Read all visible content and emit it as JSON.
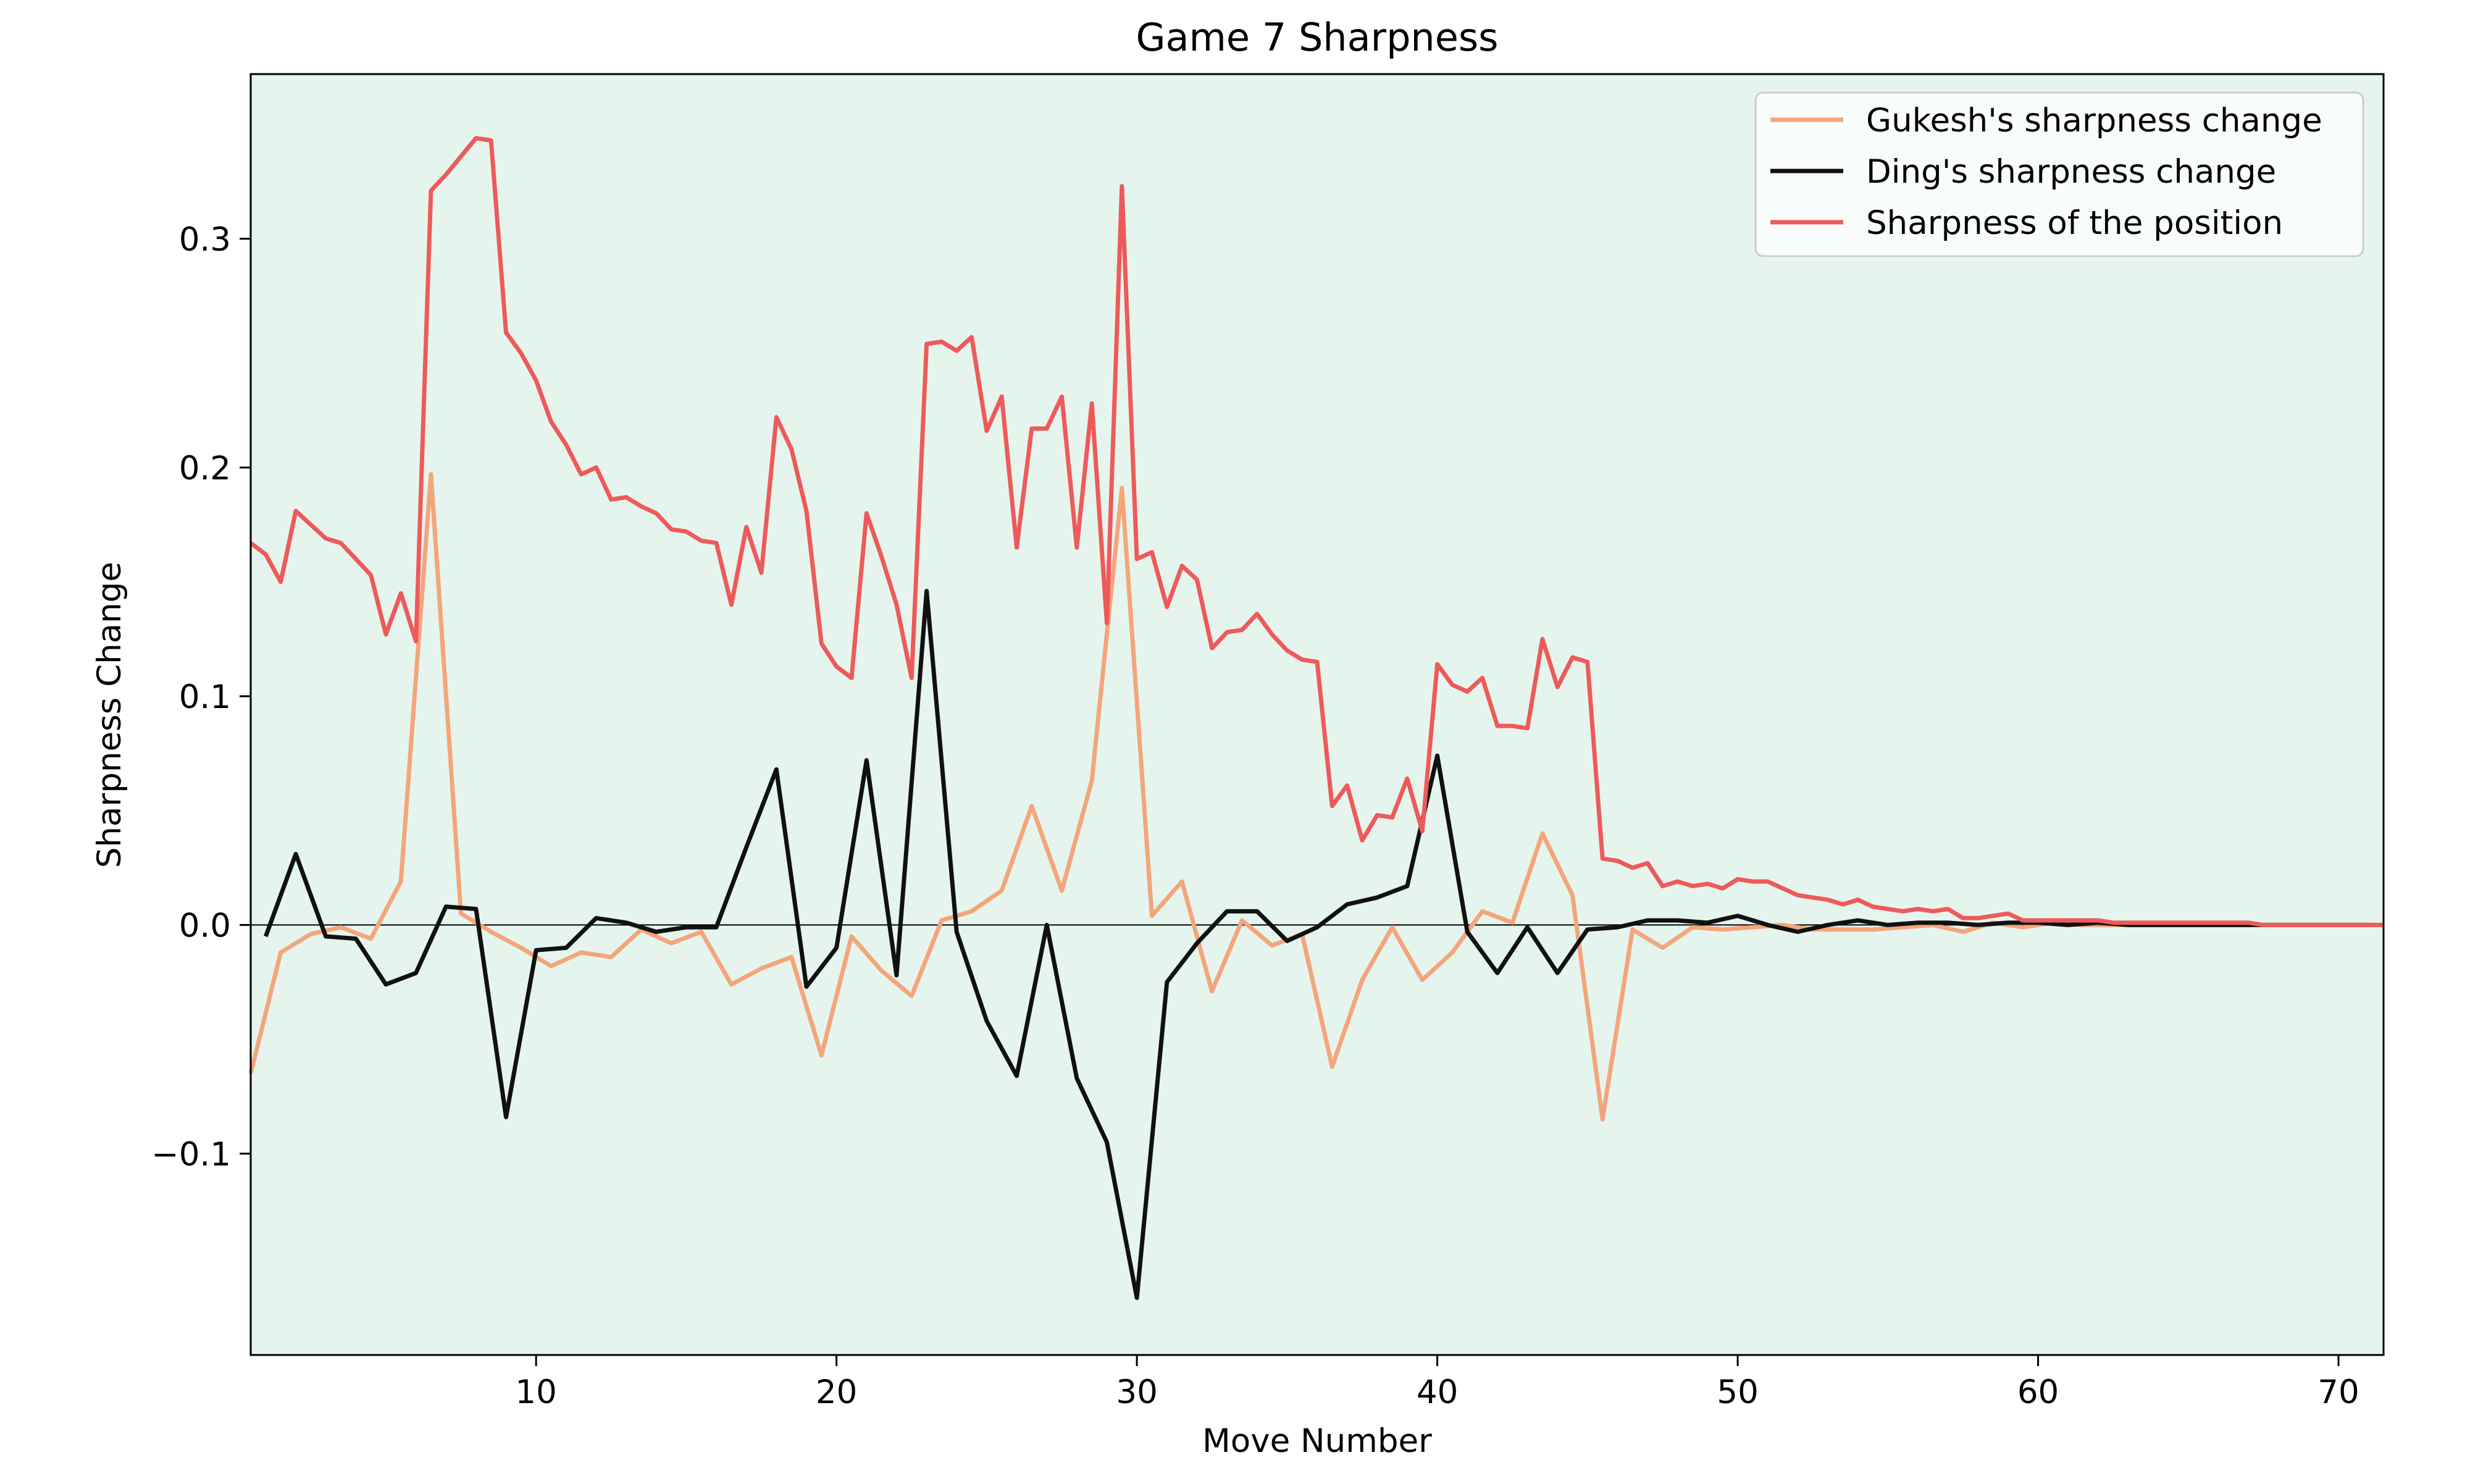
{
  "chart_data": {
    "type": "line",
    "title": "Game 7 Sharpness",
    "xlabel": "Move Number",
    "ylabel": "Sharpness Change",
    "xlim": [
      0.5,
      71.5
    ],
    "ylim": [
      -0.188,
      0.372
    ],
    "x_ticks": [
      10,
      20,
      30,
      40,
      50,
      60,
      70
    ],
    "y_ticks": [
      -0.1,
      0.0,
      0.1,
      0.2,
      0.3
    ],
    "x_tick_labels": [
      "10",
      "20",
      "30",
      "40",
      "50",
      "60",
      "70"
    ],
    "y_tick_labels": [
      "−0.1",
      "0.0",
      "0.1",
      "0.2",
      "0.3"
    ],
    "grid": false,
    "zero_line": true,
    "legend_position": "top-right",
    "plot_background": "#e5f5ee",
    "series": [
      {
        "name": "Gukesh's sharpness change",
        "color": "#f4a57b",
        "points": [
          [
            0.5,
            -0.065
          ],
          [
            1.5,
            -0.012
          ],
          [
            2.5,
            -0.004
          ],
          [
            3.5,
            -0.001
          ],
          [
            4.5,
            -0.006
          ],
          [
            5.5,
            0.019
          ],
          [
            6.5,
            0.197
          ],
          [
            7.5,
            0.005
          ],
          [
            8.5,
            -0.003
          ],
          [
            9.5,
            -0.01
          ],
          [
            10.5,
            -0.018
          ],
          [
            11.5,
            -0.012
          ],
          [
            12.5,
            -0.014
          ],
          [
            13.5,
            -0.002
          ],
          [
            14.5,
            -0.008
          ],
          [
            15.5,
            -0.003
          ],
          [
            16.5,
            -0.026
          ],
          [
            17.5,
            -0.019
          ],
          [
            18.5,
            -0.014
          ],
          [
            19.5,
            -0.057
          ],
          [
            20.5,
            -0.005
          ],
          [
            21.5,
            -0.02
          ],
          [
            22.5,
            -0.031
          ],
          [
            23.5,
            0.002
          ],
          [
            24.5,
            0.006
          ],
          [
            25.5,
            0.015
          ],
          [
            26.5,
            0.052
          ],
          [
            27.5,
            0.015
          ],
          [
            28.5,
            0.063
          ],
          [
            29.5,
            0.191
          ],
          [
            30.5,
            0.004
          ],
          [
            31.5,
            0.019
          ],
          [
            32.5,
            -0.029
          ],
          [
            33.5,
            0.002
          ],
          [
            34.5,
            -0.009
          ],
          [
            35.5,
            -0.004
          ],
          [
            36.5,
            -0.062
          ],
          [
            37.5,
            -0.024
          ],
          [
            38.5,
            -0.001
          ],
          [
            39.5,
            -0.024
          ],
          [
            40.5,
            -0.012
          ],
          [
            41.5,
            0.006
          ],
          [
            42.5,
            0.001
          ],
          [
            43.5,
            0.04
          ],
          [
            44.5,
            0.013
          ],
          [
            45.5,
            -0.085
          ],
          [
            46.5,
            -0.002
          ],
          [
            47.5,
            -0.01
          ],
          [
            48.5,
            -0.001
          ],
          [
            49.5,
            -0.002
          ],
          [
            50.5,
            -0.001
          ],
          [
            51.5,
            0.0
          ],
          [
            52.5,
            -0.002
          ],
          [
            53.5,
            -0.002
          ],
          [
            54.5,
            -0.002
          ],
          [
            55.5,
            -0.001
          ],
          [
            56.5,
            0.0
          ],
          [
            57.5,
            -0.003
          ],
          [
            58.5,
            0.001
          ],
          [
            59.5,
            -0.001
          ],
          [
            60.5,
            0.001
          ],
          [
            61.5,
            0.0
          ],
          [
            62.5,
            0.0
          ],
          [
            63.5,
            0.0
          ],
          [
            64.5,
            0.0
          ],
          [
            65.5,
            0.0
          ],
          [
            66.5,
            0.0
          ],
          [
            67.5,
            0.0
          ],
          [
            68.5,
            0.0
          ],
          [
            69.5,
            0.0
          ],
          [
            70.5,
            0.0
          ],
          [
            71.5,
            0.0
          ]
        ]
      },
      {
        "name": "Ding's sharpness change",
        "color": "#111111",
        "points": [
          [
            1,
            -0.005
          ],
          [
            2,
            0.031
          ],
          [
            3,
            -0.005
          ],
          [
            4,
            -0.006
          ],
          [
            5,
            -0.026
          ],
          [
            6,
            -0.021
          ],
          [
            7,
            0.008
          ],
          [
            8,
            0.007
          ],
          [
            9,
            -0.084
          ],
          [
            10,
            -0.011
          ],
          [
            11,
            -0.01
          ],
          [
            12,
            0.003
          ],
          [
            13,
            0.001
          ],
          [
            14,
            -0.003
          ],
          [
            15,
            -0.001
          ],
          [
            16,
            -0.001
          ],
          [
            17,
            0.034
          ],
          [
            18,
            0.068
          ],
          [
            19,
            -0.027
          ],
          [
            20,
            -0.01
          ],
          [
            21,
            0.072
          ],
          [
            22,
            -0.022
          ],
          [
            23,
            0.146
          ],
          [
            24,
            -0.003
          ],
          [
            25,
            -0.042
          ],
          [
            26,
            -0.066
          ],
          [
            27,
            0.0
          ],
          [
            28,
            -0.067
          ],
          [
            29,
            -0.095
          ],
          [
            30,
            -0.163
          ],
          [
            31,
            -0.025
          ],
          [
            32,
            -0.008
          ],
          [
            33,
            0.006
          ],
          [
            34,
            0.006
          ],
          [
            35,
            -0.007
          ],
          [
            36,
            -0.001
          ],
          [
            37,
            0.009
          ],
          [
            38,
            0.012
          ],
          [
            39,
            0.017
          ],
          [
            40,
            0.074
          ],
          [
            41,
            -0.003
          ],
          [
            42,
            -0.021
          ],
          [
            43,
            -0.001
          ],
          [
            44,
            -0.021
          ],
          [
            45,
            -0.002
          ],
          [
            46,
            -0.001
          ],
          [
            47,
            0.002
          ],
          [
            48,
            0.002
          ],
          [
            49,
            0.001
          ],
          [
            50,
            0.004
          ],
          [
            51,
            0.0
          ],
          [
            52,
            -0.003
          ],
          [
            53,
            0.0
          ],
          [
            54,
            0.002
          ],
          [
            55,
            0.0
          ],
          [
            56,
            0.001
          ],
          [
            57,
            0.001
          ],
          [
            58,
            0.0
          ],
          [
            59,
            0.001
          ],
          [
            60,
            0.001
          ],
          [
            61,
            0.0
          ],
          [
            62,
            0.001
          ],
          [
            63,
            0.0
          ],
          [
            64,
            0.0
          ],
          [
            65,
            0.0
          ],
          [
            66,
            0.0
          ],
          [
            67,
            0.0
          ],
          [
            68,
            0.0
          ],
          [
            69,
            0.0
          ],
          [
            70,
            0.0
          ],
          [
            71,
            0.0
          ]
        ]
      },
      {
        "name": "Sharpness of the position",
        "color": "#ee5a5a",
        "points": [
          [
            0.5,
            0.167
          ],
          [
            1.0,
            0.162
          ],
          [
            1.5,
            0.15
          ],
          [
            2.0,
            0.181
          ],
          [
            2.5,
            0.175
          ],
          [
            3.0,
            0.169
          ],
          [
            3.5,
            0.167
          ],
          [
            4.0,
            0.16
          ],
          [
            4.5,
            0.153
          ],
          [
            5.0,
            0.127
          ],
          [
            5.5,
            0.145
          ],
          [
            6.0,
            0.124
          ],
          [
            6.5,
            0.321
          ],
          [
            7.0,
            0.328
          ],
          [
            7.5,
            0.336
          ],
          [
            8.0,
            0.344
          ],
          [
            8.5,
            0.343
          ],
          [
            9.0,
            0.259
          ],
          [
            9.5,
            0.25
          ],
          [
            10.0,
            0.238
          ],
          [
            10.5,
            0.22
          ],
          [
            11.0,
            0.21
          ],
          [
            11.5,
            0.197
          ],
          [
            12.0,
            0.2
          ],
          [
            12.5,
            0.186
          ],
          [
            13.0,
            0.187
          ],
          [
            13.5,
            0.183
          ],
          [
            14.0,
            0.18
          ],
          [
            14.5,
            0.173
          ],
          [
            15.0,
            0.172
          ],
          [
            15.5,
            0.168
          ],
          [
            16.0,
            0.167
          ],
          [
            16.5,
            0.14
          ],
          [
            17.0,
            0.174
          ],
          [
            17.5,
            0.154
          ],
          [
            18.0,
            0.222
          ],
          [
            18.5,
            0.208
          ],
          [
            19.0,
            0.181
          ],
          [
            19.5,
            0.123
          ],
          [
            20.0,
            0.113
          ],
          [
            20.5,
            0.108
          ],
          [
            21.0,
            0.18
          ],
          [
            21.5,
            0.161
          ],
          [
            22.0,
            0.14
          ],
          [
            22.5,
            0.108
          ],
          [
            23.0,
            0.254
          ],
          [
            23.5,
            0.255
          ],
          [
            24.0,
            0.251
          ],
          [
            24.5,
            0.257
          ],
          [
            25.0,
            0.216
          ],
          [
            25.5,
            0.231
          ],
          [
            26.0,
            0.165
          ],
          [
            26.5,
            0.217
          ],
          [
            27.0,
            0.217
          ],
          [
            27.5,
            0.231
          ],
          [
            28.0,
            0.165
          ],
          [
            28.5,
            0.228
          ],
          [
            29.0,
            0.132
          ],
          [
            29.5,
            0.323
          ],
          [
            30.0,
            0.16
          ],
          [
            30.5,
            0.163
          ],
          [
            31.0,
            0.139
          ],
          [
            31.5,
            0.157
          ],
          [
            32.0,
            0.151
          ],
          [
            32.5,
            0.121
          ],
          [
            33.0,
            0.128
          ],
          [
            33.5,
            0.129
          ],
          [
            34.0,
            0.136
          ],
          [
            34.5,
            0.127
          ],
          [
            35.0,
            0.12
          ],
          [
            35.5,
            0.116
          ],
          [
            36.0,
            0.115
          ],
          [
            36.5,
            0.052
          ],
          [
            37.0,
            0.061
          ],
          [
            37.5,
            0.037
          ],
          [
            38.0,
            0.048
          ],
          [
            38.5,
            0.047
          ],
          [
            39.0,
            0.064
          ],
          [
            39.5,
            0.041
          ],
          [
            40.0,
            0.114
          ],
          [
            40.5,
            0.105
          ],
          [
            41.0,
            0.102
          ],
          [
            41.5,
            0.108
          ],
          [
            42.0,
            0.087
          ],
          [
            42.5,
            0.087
          ],
          [
            43.0,
            0.086
          ],
          [
            43.5,
            0.125
          ],
          [
            44.0,
            0.104
          ],
          [
            44.5,
            0.117
          ],
          [
            45.0,
            0.115
          ],
          [
            45.5,
            0.029
          ],
          [
            46.0,
            0.028
          ],
          [
            46.5,
            0.025
          ],
          [
            47.0,
            0.027
          ],
          [
            47.5,
            0.017
          ],
          [
            48.0,
            0.019
          ],
          [
            48.5,
            0.017
          ],
          [
            49.0,
            0.018
          ],
          [
            49.5,
            0.016
          ],
          [
            50.0,
            0.02
          ],
          [
            50.5,
            0.019
          ],
          [
            51.0,
            0.019
          ],
          [
            51.5,
            0.016
          ],
          [
            52.0,
            0.013
          ],
          [
            52.5,
            0.012
          ],
          [
            53.0,
            0.011
          ],
          [
            53.5,
            0.009
          ],
          [
            54.0,
            0.011
          ],
          [
            54.5,
            0.008
          ],
          [
            55.0,
            0.007
          ],
          [
            55.5,
            0.006
          ],
          [
            56.0,
            0.007
          ],
          [
            56.5,
            0.006
          ],
          [
            57.0,
            0.007
          ],
          [
            57.5,
            0.003
          ],
          [
            58.0,
            0.003
          ],
          [
            58.5,
            0.004
          ],
          [
            59.0,
            0.005
          ],
          [
            59.5,
            0.002
          ],
          [
            60.0,
            0.002
          ],
          [
            60.5,
            0.002
          ],
          [
            61.0,
            0.002
          ],
          [
            61.5,
            0.002
          ],
          [
            62.0,
            0.002
          ],
          [
            62.5,
            0.001
          ],
          [
            63.0,
            0.001
          ],
          [
            63.5,
            0.001
          ],
          [
            64.0,
            0.001
          ],
          [
            64.5,
            0.001
          ],
          [
            65.0,
            0.001
          ],
          [
            65.5,
            0.001
          ],
          [
            66.0,
            0.001
          ],
          [
            66.5,
            0.001
          ],
          [
            67.0,
            0.001
          ],
          [
            67.5,
            0.0
          ],
          [
            68.0,
            0.0
          ],
          [
            68.5,
            0.0
          ],
          [
            69.0,
            0.0
          ],
          [
            69.5,
            0.0
          ],
          [
            70.0,
            0.0
          ],
          [
            70.5,
            0.0
          ],
          [
            71.0,
            0.0
          ],
          [
            71.5,
            0.0
          ]
        ]
      }
    ]
  }
}
